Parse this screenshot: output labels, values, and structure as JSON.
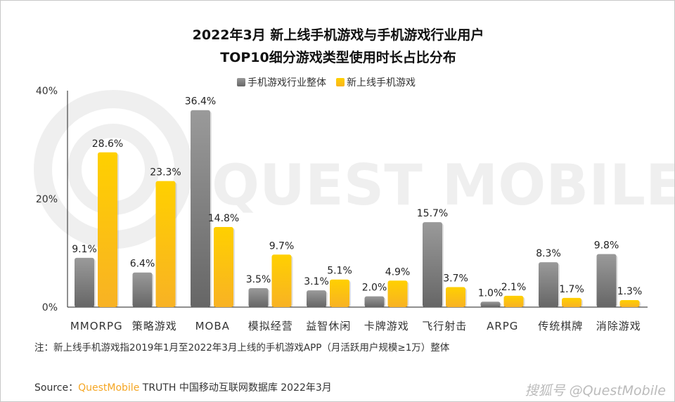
{
  "chart_data": {
    "type": "bar",
    "title_lines": [
      "2022年3月 新上线手机游戏与手机游戏行业用户",
      "TOP10细分游戏类型使用时长占比分布"
    ],
    "categories": [
      "MMORPG",
      "策略游戏",
      "MOBA",
      "模拟经营",
      "益智休闲",
      "卡牌游戏",
      "飞行射击",
      "ARPG",
      "传统棋牌",
      "消除游戏"
    ],
    "series": [
      {
        "name": "手机游戏行业整体",
        "color": "#7f7f7f",
        "values": [
          9.1,
          6.4,
          36.4,
          3.5,
          3.1,
          2.0,
          15.7,
          1.0,
          8.3,
          9.8
        ]
      },
      {
        "name": "新上线手机游戏",
        "color": "#fdc10f",
        "values": [
          28.6,
          23.3,
          14.8,
          9.7,
          5.1,
          4.9,
          3.7,
          2.1,
          1.7,
          1.3
        ]
      }
    ],
    "yticks": [
      "0%",
      "20%",
      "40%"
    ],
    "ylim": [
      0,
      40
    ],
    "unit": "%",
    "legend": "top-center",
    "grid": false
  },
  "note": "注：新上线手机游戏指2019年1月至2022年3月上线的手机游戏APP（月活跃用户规模≥1万）整体",
  "source": {
    "prefix": "Source：",
    "brand": "QuestMobile",
    "rest": " TRUTH 中国移动互联网数据库 2022年3月"
  },
  "watermark": "搜狐号 @QuestMobile",
  "background_logo": "QUEST MOBILE"
}
